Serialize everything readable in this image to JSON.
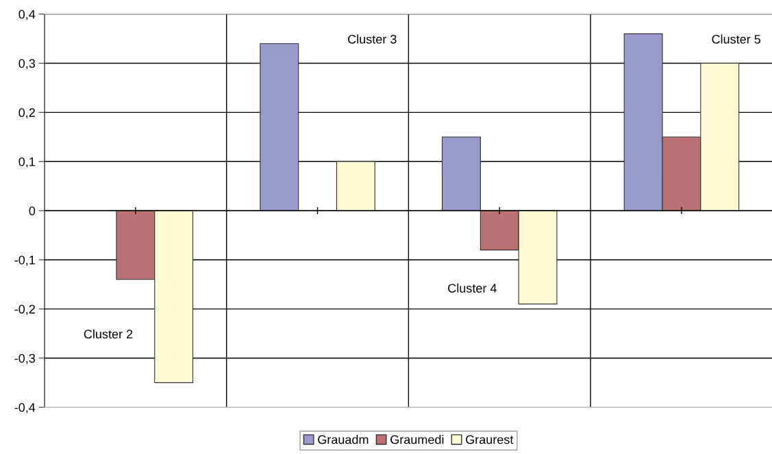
{
  "chart_data": {
    "type": "bar",
    "categories": [
      null,
      null,
      null,
      null
    ],
    "series": [
      {
        "name": "Grauadm",
        "color": "#9999cc",
        "values": [
          null,
          0.34,
          0.15,
          0.36
        ]
      },
      {
        "name": "Graumedi",
        "color": "#bb7073",
        "values": [
          -0.14,
          null,
          -0.08,
          0.15
        ]
      },
      {
        "name": "Graurest",
        "color": "#fffad4",
        "values": [
          -0.35,
          0.1,
          -0.19,
          0.3
        ]
      }
    ],
    "annotations": [
      "Cluster 2",
      "Cluster 3",
      "Cluster 4",
      "Cluster 5"
    ],
    "ylim": [
      -0.4,
      0.4
    ],
    "yticks": [
      {
        "value": -0.4,
        "label": "-0,4"
      },
      {
        "value": -0.3,
        "label": "-0,3"
      },
      {
        "value": -0.2,
        "label": "-0,2"
      },
      {
        "value": -0.1,
        "label": "-0,1"
      },
      0,
      {
        "value": 0.1,
        "label": "0,1"
      },
      {
        "value": 0.2,
        "label": "0,2"
      },
      {
        "value": 0.3,
        "label": "0,3"
      },
      {
        "value": 0.4,
        "label": "0,4"
      }
    ],
    "grid": true,
    "legend": "bottom",
    "tick_labels": "y"
  }
}
